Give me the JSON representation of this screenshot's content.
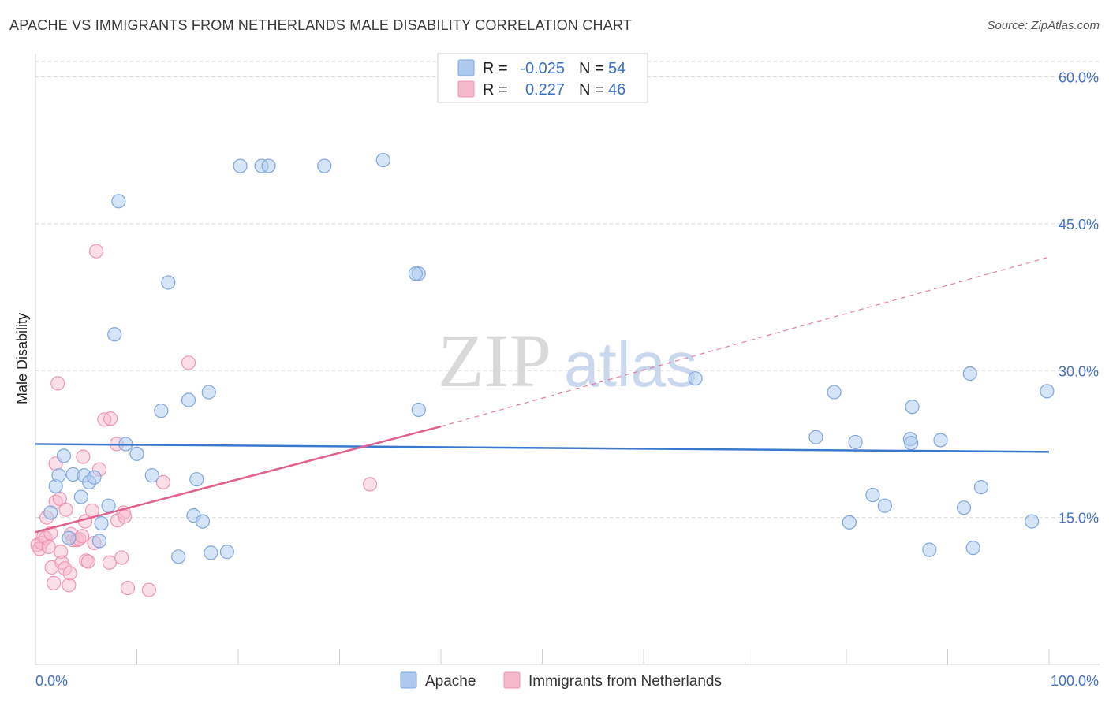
{
  "title": "APACHE VS IMMIGRANTS FROM NETHERLANDS MALE DISABILITY CORRELATION CHART",
  "source": "Source: ZipAtlas.com",
  "watermark": {
    "zip": "ZIP",
    "atlas": "atlas"
  },
  "colors": {
    "apache_fill": "#aec9ef",
    "apache_stroke": "#7ea6de",
    "apache_line": "#3a78d0",
    "neth_fill": "#f6b8cb",
    "neth_stroke": "#ef96b2",
    "neth_line": "#e0608e",
    "axis_text": "#4472c4",
    "grid": "#d8d8d8"
  },
  "legend": {
    "rows": [
      {
        "r_label": "R =",
        "r_value": "-0.025",
        "n_label": "N =",
        "n_value": "54"
      },
      {
        "r_label": "R =",
        "r_value": "0.227",
        "n_label": "N =",
        "n_value": "46"
      }
    ]
  },
  "chart_data": {
    "type": "scatter",
    "title": "APACHE VS IMMIGRANTS FROM NETHERLANDS MALE DISABILITY CORRELATION CHART",
    "xlabel": "",
    "ylabel": "Male Disability",
    "xlim": [
      0,
      100
    ],
    "ylim": [
      0,
      60
    ],
    "x_tick_labels": [
      "0.0%",
      "100.0%"
    ],
    "y_ticks": [
      15,
      30,
      45,
      60
    ],
    "y_tick_labels": [
      "15.0%",
      "30.0%",
      "45.0%",
      "60.0%"
    ],
    "grid": true,
    "legend_position": "top-center",
    "series": [
      {
        "name": "Apache",
        "r": -0.025,
        "n": 54,
        "trend": {
          "x": [
            0,
            100
          ],
          "y": [
            22.5,
            21.7
          ],
          "dashed_to": null
        },
        "points": [
          [
            1.5,
            15.5
          ],
          [
            2.0,
            18.2
          ],
          [
            2.3,
            19.3
          ],
          [
            2.8,
            21.3
          ],
          [
            3.3,
            12.9
          ],
          [
            3.7,
            19.4
          ],
          [
            4.5,
            17.1
          ],
          [
            4.8,
            19.3
          ],
          [
            5.3,
            18.6
          ],
          [
            5.8,
            19.1
          ],
          [
            6.3,
            12.6
          ],
          [
            6.5,
            14.4
          ],
          [
            7.2,
            16.2
          ],
          [
            7.8,
            33.7
          ],
          [
            8.2,
            47.3
          ],
          [
            8.9,
            22.5
          ],
          [
            10.0,
            21.5
          ],
          [
            11.5,
            19.3
          ],
          [
            12.4,
            25.9
          ],
          [
            13.1,
            39.0
          ],
          [
            14.1,
            11.0
          ],
          [
            15.1,
            27.0
          ],
          [
            15.6,
            15.2
          ],
          [
            15.9,
            18.9
          ],
          [
            16.5,
            14.6
          ],
          [
            17.1,
            27.8
          ],
          [
            17.3,
            11.4
          ],
          [
            18.9,
            11.5
          ],
          [
            20.2,
            50.9
          ],
          [
            22.3,
            50.9
          ],
          [
            28.5,
            50.9
          ],
          [
            34.3,
            51.5
          ],
          [
            37.8,
            39.9
          ],
          [
            37.8,
            26.0
          ],
          [
            65.1,
            29.2
          ],
          [
            77.0,
            23.2
          ],
          [
            78.8,
            27.8
          ],
          [
            80.3,
            14.5
          ],
          [
            80.9,
            22.7
          ],
          [
            82.6,
            17.3
          ],
          [
            83.8,
            16.2
          ],
          [
            86.3,
            23.0
          ],
          [
            86.4,
            22.6
          ],
          [
            86.5,
            26.3
          ],
          [
            88.2,
            11.7
          ],
          [
            89.3,
            22.9
          ],
          [
            91.6,
            16.0
          ],
          [
            92.2,
            29.7
          ],
          [
            92.5,
            11.9
          ],
          [
            93.3,
            18.1
          ],
          [
            98.3,
            14.6
          ],
          [
            99.8,
            27.9
          ],
          [
            37.5,
            39.9
          ],
          [
            23.0,
            50.9
          ]
        ]
      },
      {
        "name": "Immigrants from Netherlands",
        "r": 0.227,
        "n": 46,
        "trend": {
          "x": [
            0,
            40
          ],
          "y": [
            13.5,
            24.3
          ],
          "dashed_x": [
            40,
            100
          ],
          "dashed_y": [
            24.3,
            41.6
          ]
        },
        "points": [
          [
            0.2,
            12.2
          ],
          [
            0.4,
            11.8
          ],
          [
            0.6,
            12.4
          ],
          [
            0.8,
            13.1
          ],
          [
            1.0,
            12.9
          ],
          [
            1.1,
            15.0
          ],
          [
            1.3,
            12.0
          ],
          [
            1.5,
            13.4
          ],
          [
            1.6,
            9.9
          ],
          [
            1.8,
            8.3
          ],
          [
            2.0,
            16.6
          ],
          [
            2.0,
            20.5
          ],
          [
            2.2,
            28.7
          ],
          [
            2.4,
            16.9
          ],
          [
            2.5,
            11.5
          ],
          [
            2.6,
            10.4
          ],
          [
            2.9,
            9.8
          ],
          [
            3.0,
            15.8
          ],
          [
            3.3,
            8.1
          ],
          [
            3.4,
            9.3
          ],
          [
            3.5,
            13.3
          ],
          [
            3.7,
            12.7
          ],
          [
            4.1,
            12.7
          ],
          [
            4.3,
            12.8
          ],
          [
            4.6,
            13.1
          ],
          [
            4.7,
            21.2
          ],
          [
            4.9,
            14.6
          ],
          [
            5.0,
            10.6
          ],
          [
            5.2,
            10.5
          ],
          [
            5.8,
            12.4
          ],
          [
            6.0,
            42.2
          ],
          [
            6.3,
            19.9
          ],
          [
            6.8,
            25.0
          ],
          [
            7.3,
            10.4
          ],
          [
            7.4,
            25.1
          ],
          [
            8.0,
            22.5
          ],
          [
            8.1,
            14.7
          ],
          [
            8.5,
            10.9
          ],
          [
            8.7,
            15.5
          ],
          [
            8.8,
            15.1
          ],
          [
            9.1,
            7.8
          ],
          [
            11.2,
            7.6
          ],
          [
            12.6,
            18.6
          ],
          [
            15.1,
            30.8
          ],
          [
            33.0,
            18.4
          ],
          [
            5.6,
            15.7
          ]
        ]
      }
    ]
  },
  "bottom_legend": {
    "items": [
      {
        "label": "Apache"
      },
      {
        "label": "Immigrants from Netherlands"
      }
    ]
  }
}
